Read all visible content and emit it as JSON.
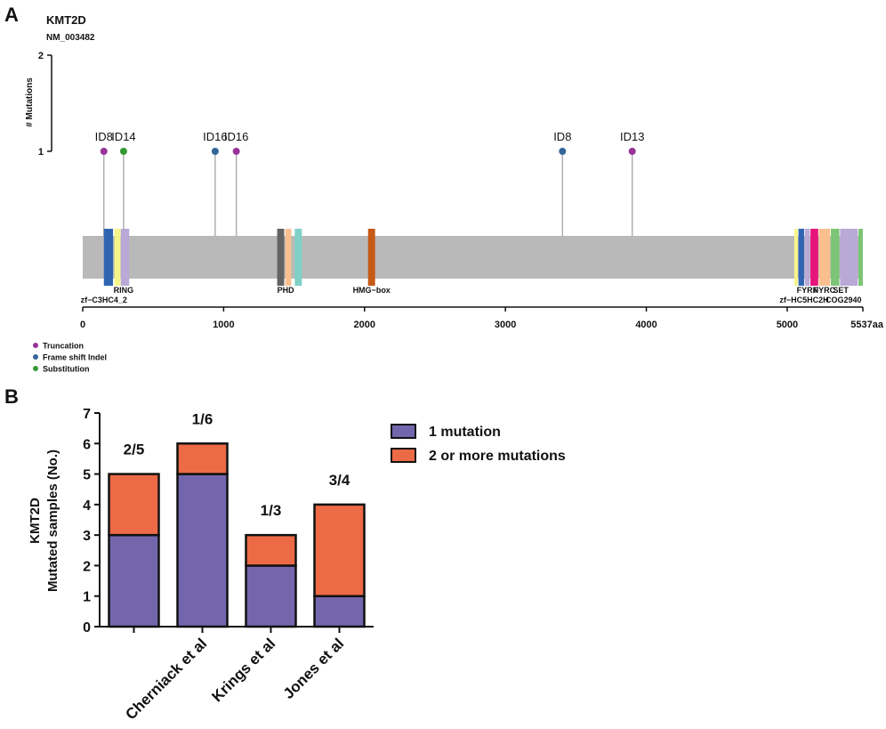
{
  "panel_a": {
    "panel_label": "A",
    "gene": "KMT2D",
    "transcript": "NM_003482",
    "protein_length": 5537,
    "length_label": "5537aa",
    "y_axis_label": "# Mutations",
    "y_ticks": [
      "1",
      "2"
    ],
    "x_ticks": [
      {
        "value": 0,
        "label": "0"
      },
      {
        "value": 1000,
        "label": "1000"
      },
      {
        "value": 2000,
        "label": "2000"
      },
      {
        "value": 3000,
        "label": "3000"
      },
      {
        "value": 4000,
        "label": "4000"
      },
      {
        "value": 5000,
        "label": "5000"
      }
    ],
    "mutations": [
      {
        "pos": 150,
        "label": "ID8",
        "type": "truncation",
        "count": 1
      },
      {
        "pos": 290,
        "label": "ID14",
        "type": "substitution",
        "count": 1
      },
      {
        "pos": 940,
        "label": "ID16",
        "type": "frameshift",
        "count": 1
      },
      {
        "pos": 1090,
        "label": "ID16",
        "type": "truncation",
        "count": 1
      },
      {
        "pos": 3405,
        "label": "ID8",
        "type": "frameshift",
        "count": 1
      },
      {
        "pos": 3900,
        "label": "ID13",
        "type": "truncation",
        "count": 1
      }
    ],
    "domains": [
      {
        "start": 150,
        "end": 215,
        "color": "#2f65b0"
      },
      {
        "start": 225,
        "end": 268,
        "color": "#f6f58a"
      },
      {
        "start": 270,
        "end": 330,
        "color": "#b9a9d6"
      },
      {
        "start": 1380,
        "end": 1430,
        "color": "#636363"
      },
      {
        "start": 1438,
        "end": 1480,
        "color": "#f9bf8f"
      },
      {
        "start": 1505,
        "end": 1555,
        "color": "#7fd1c5"
      },
      {
        "start": 2025,
        "end": 2075,
        "color": "#c65a18"
      },
      {
        "start": 5050,
        "end": 5075,
        "color": "#f6f58a"
      },
      {
        "start": 5080,
        "end": 5120,
        "color": "#2f65b0"
      },
      {
        "start": 5125,
        "end": 5160,
        "color": "#b9a9d6"
      },
      {
        "start": 5165,
        "end": 5220,
        "color": "#e5157a"
      },
      {
        "start": 5225,
        "end": 5305,
        "color": "#f9bf8f"
      },
      {
        "start": 5310,
        "end": 5370,
        "color": "#7cc576"
      },
      {
        "start": 5375,
        "end": 5500,
        "color": "#b9a9d6"
      },
      {
        "start": 5505,
        "end": 5537,
        "color": "#7cc576"
      }
    ],
    "domain_labels": [
      {
        "text": "RING",
        "pos": 290,
        "row": 1
      },
      {
        "text": "zf−C3HC4_2",
        "pos": 150,
        "row": 2
      },
      {
        "text": "PHD",
        "pos": 1440,
        "row": 1
      },
      {
        "text": "HMG−box",
        "pos": 2050,
        "row": 1
      },
      {
        "text": "FYRN",
        "pos": 5145,
        "row": 1
      },
      {
        "text": "FYRC",
        "pos": 5265,
        "row": 1
      },
      {
        "text": "SET",
        "pos": 5380,
        "row": 1
      },
      {
        "text": "zf−HC5HC2H",
        "pos": 5120,
        "row": 2
      },
      {
        "text": "COG2940",
        "pos": 5400,
        "row": 2
      }
    ],
    "legend": [
      {
        "key": "truncation",
        "label": "Truncation",
        "color": "#993399"
      },
      {
        "key": "frameshift",
        "label": "Frame shift Indel",
        "color": "#336699"
      },
      {
        "key": "substitution",
        "label": "Substitution",
        "color": "#339933"
      }
    ]
  },
  "chart_data": {
    "type": "bar",
    "stacked": true,
    "panel_label": "B",
    "title": "",
    "xlabel": "",
    "ylabel_lines": [
      "KMT2D",
      "Mutated samples (No.)"
    ],
    "ylim": [
      0,
      7
    ],
    "yticks": [
      0,
      1,
      2,
      3,
      4,
      5,
      6,
      7
    ],
    "categories": [
      "",
      "Cherniack et al",
      "Krings et al",
      "Jones et al"
    ],
    "series": [
      {
        "name": "1 mutation",
        "color": "#7366ad",
        "values": [
          3,
          5,
          2,
          1
        ]
      },
      {
        "name": "2 or more mutations",
        "color": "#ec6a46",
        "values": [
          2,
          1,
          1,
          3
        ]
      }
    ],
    "bar_labels": [
      "2/5",
      "1/6",
      "1/3",
      "3/4"
    ],
    "legend_position": "top-right"
  }
}
